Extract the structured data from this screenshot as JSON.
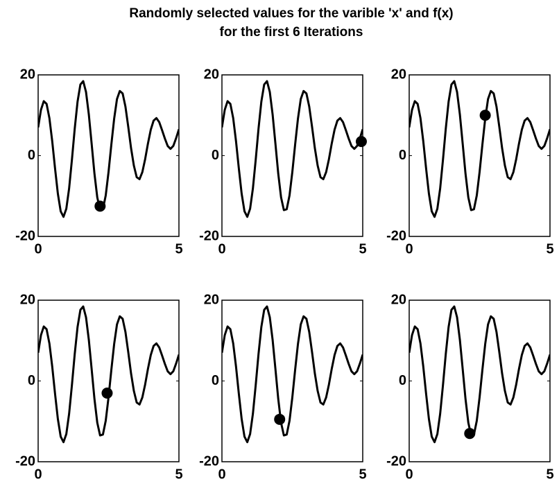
{
  "figure": {
    "title_lines": [
      "Randomly selected values for the varible 'x' and f(x)",
      "for the first 6 Iterations"
    ]
  },
  "chart_data": [
    {
      "type": "line",
      "xlim": [
        0,
        5
      ],
      "ylim": [
        -20,
        20
      ],
      "xticks": [
        0,
        5
      ],
      "yticks": [
        -20,
        0,
        20
      ],
      "series": [
        {
          "type": "line",
          "color": "#000000",
          "x": [
            0,
            0.1,
            0.2,
            0.3,
            0.4,
            0.5,
            0.6,
            0.7,
            0.8,
            0.9,
            1,
            1.1,
            1.2,
            1.3,
            1.4,
            1.5,
            1.6,
            1.7,
            1.8,
            1.9,
            2,
            2.1,
            2.2,
            2.3,
            2.4,
            2.5,
            2.6,
            2.7,
            2.8,
            2.9,
            3,
            3.1,
            3.2,
            3.3,
            3.4,
            3.5,
            3.6,
            3.7,
            3.8,
            3.9,
            4,
            4.1,
            4.2,
            4.3,
            4.4,
            4.5,
            4.6,
            4.7,
            4.8,
            4.9,
            5
          ],
          "values": [
            7,
            11.34,
            13.49,
            12.81,
            9.29,
            3.57,
            -3.15,
            -9.4,
            -13.76,
            -15.15,
            -13.16,
            -8.11,
            -0.98,
            6.73,
            13.4,
            17.6,
            18.45,
            15.77,
            10.18,
            2.94,
            -4.46,
            -10.33,
            -13.48,
            -13.28,
            -9.86,
            -4.04,
            2.78,
            9.17,
            14.01,
            16,
            15.41,
            12.16,
            7.15,
            1.84,
            -2.48,
            -5.33,
            -5.83,
            -4.08,
            -0.86,
            3.02,
            6.43,
            8.67,
            9.29,
            8.31,
            6.33,
            4.25,
            2.4,
            1.69,
            2.41,
            4.33,
            6.53
          ]
        },
        {
          "type": "scatter",
          "color": "#000000",
          "x": [
            2.2
          ],
          "values": [
            -12.5
          ]
        }
      ]
    },
    {
      "type": "line",
      "xlim": [
        0,
        5
      ],
      "ylim": [
        -20,
        20
      ],
      "xticks": [
        0,
        5
      ],
      "yticks": [
        -20,
        0,
        20
      ],
      "series": [
        {
          "type": "line",
          "color": "#000000",
          "x": [
            0,
            0.1,
            0.2,
            0.3,
            0.4,
            0.5,
            0.6,
            0.7,
            0.8,
            0.9,
            1,
            1.1,
            1.2,
            1.3,
            1.4,
            1.5,
            1.6,
            1.7,
            1.8,
            1.9,
            2,
            2.1,
            2.2,
            2.3,
            2.4,
            2.5,
            2.6,
            2.7,
            2.8,
            2.9,
            3,
            3.1,
            3.2,
            3.3,
            3.4,
            3.5,
            3.6,
            3.7,
            3.8,
            3.9,
            4,
            4.1,
            4.2,
            4.3,
            4.4,
            4.5,
            4.6,
            4.7,
            4.8,
            4.9,
            5
          ],
          "values": [
            7,
            11.34,
            13.49,
            12.81,
            9.29,
            3.57,
            -3.15,
            -9.4,
            -13.76,
            -15.15,
            -13.16,
            -8.11,
            -0.98,
            6.73,
            13.4,
            17.6,
            18.45,
            15.77,
            10.18,
            2.94,
            -4.46,
            -10.33,
            -13.48,
            -13.28,
            -9.86,
            -4.04,
            2.78,
            9.17,
            14.01,
            16,
            15.41,
            12.16,
            7.15,
            1.84,
            -2.48,
            -5.33,
            -5.83,
            -4.08,
            -0.86,
            3.02,
            6.43,
            8.67,
            9.29,
            8.31,
            6.33,
            4.25,
            2.4,
            1.69,
            2.41,
            4.33,
            6.53
          ]
        },
        {
          "type": "scatter",
          "color": "#000000",
          "x": [
            4.95
          ],
          "values": [
            3.5
          ]
        }
      ]
    },
    {
      "type": "line",
      "xlim": [
        0,
        5
      ],
      "ylim": [
        -20,
        20
      ],
      "xticks": [
        0,
        5
      ],
      "yticks": [
        -20,
        0,
        20
      ],
      "series": [
        {
          "type": "line",
          "color": "#000000",
          "x": [
            0,
            0.1,
            0.2,
            0.3,
            0.4,
            0.5,
            0.6,
            0.7,
            0.8,
            0.9,
            1,
            1.1,
            1.2,
            1.3,
            1.4,
            1.5,
            1.6,
            1.7,
            1.8,
            1.9,
            2,
            2.1,
            2.2,
            2.3,
            2.4,
            2.5,
            2.6,
            2.7,
            2.8,
            2.9,
            3,
            3.1,
            3.2,
            3.3,
            3.4,
            3.5,
            3.6,
            3.7,
            3.8,
            3.9,
            4,
            4.1,
            4.2,
            4.3,
            4.4,
            4.5,
            4.6,
            4.7,
            4.8,
            4.9,
            5
          ],
          "values": [
            7,
            11.34,
            13.49,
            12.81,
            9.29,
            3.57,
            -3.15,
            -9.4,
            -13.76,
            -15.15,
            -13.16,
            -8.11,
            -0.98,
            6.73,
            13.4,
            17.6,
            18.45,
            15.77,
            10.18,
            2.94,
            -4.46,
            -10.33,
            -13.48,
            -13.28,
            -9.86,
            -4.04,
            2.78,
            9.17,
            14.01,
            16,
            15.41,
            12.16,
            7.15,
            1.84,
            -2.48,
            -5.33,
            -5.83,
            -4.08,
            -0.86,
            3.02,
            6.43,
            8.67,
            9.29,
            8.31,
            6.33,
            4.25,
            2.4,
            1.69,
            2.41,
            4.33,
            6.53
          ]
        },
        {
          "type": "scatter",
          "color": "#000000",
          "x": [
            2.7
          ],
          "values": [
            10
          ]
        }
      ]
    },
    {
      "type": "line",
      "xlim": [
        0,
        5
      ],
      "ylim": [
        -20,
        20
      ],
      "xticks": [
        0,
        5
      ],
      "yticks": [
        -20,
        0,
        20
      ],
      "series": [
        {
          "type": "line",
          "color": "#000000",
          "x": [
            0,
            0.1,
            0.2,
            0.3,
            0.4,
            0.5,
            0.6,
            0.7,
            0.8,
            0.9,
            1,
            1.1,
            1.2,
            1.3,
            1.4,
            1.5,
            1.6,
            1.7,
            1.8,
            1.9,
            2,
            2.1,
            2.2,
            2.3,
            2.4,
            2.5,
            2.6,
            2.7,
            2.8,
            2.9,
            3,
            3.1,
            3.2,
            3.3,
            3.4,
            3.5,
            3.6,
            3.7,
            3.8,
            3.9,
            4,
            4.1,
            4.2,
            4.3,
            4.4,
            4.5,
            4.6,
            4.7,
            4.8,
            4.9,
            5
          ],
          "values": [
            7,
            11.34,
            13.49,
            12.81,
            9.29,
            3.57,
            -3.15,
            -9.4,
            -13.76,
            -15.15,
            -13.16,
            -8.11,
            -0.98,
            6.73,
            13.4,
            17.6,
            18.45,
            15.77,
            10.18,
            2.94,
            -4.46,
            -10.33,
            -13.48,
            -13.28,
            -9.86,
            -4.04,
            2.78,
            9.17,
            14.01,
            16,
            15.41,
            12.16,
            7.15,
            1.84,
            -2.48,
            -5.33,
            -5.83,
            -4.08,
            -0.86,
            3.02,
            6.43,
            8.67,
            9.29,
            8.31,
            6.33,
            4.25,
            2.4,
            1.69,
            2.41,
            4.33,
            6.53
          ]
        },
        {
          "type": "scatter",
          "color": "#000000",
          "x": [
            2.45
          ],
          "values": [
            -3
          ]
        }
      ]
    },
    {
      "type": "line",
      "xlim": [
        0,
        5
      ],
      "ylim": [
        -20,
        20
      ],
      "xticks": [
        0,
        5
      ],
      "yticks": [
        -20,
        0,
        20
      ],
      "series": [
        {
          "type": "line",
          "color": "#000000",
          "x": [
            0,
            0.1,
            0.2,
            0.3,
            0.4,
            0.5,
            0.6,
            0.7,
            0.8,
            0.9,
            1,
            1.1,
            1.2,
            1.3,
            1.4,
            1.5,
            1.6,
            1.7,
            1.8,
            1.9,
            2,
            2.1,
            2.2,
            2.3,
            2.4,
            2.5,
            2.6,
            2.7,
            2.8,
            2.9,
            3,
            3.1,
            3.2,
            3.3,
            3.4,
            3.5,
            3.6,
            3.7,
            3.8,
            3.9,
            4,
            4.1,
            4.2,
            4.3,
            4.4,
            4.5,
            4.6,
            4.7,
            4.8,
            4.9,
            5
          ],
          "values": [
            7,
            11.34,
            13.49,
            12.81,
            9.29,
            3.57,
            -3.15,
            -9.4,
            -13.76,
            -15.15,
            -13.16,
            -8.11,
            -0.98,
            6.73,
            13.4,
            17.6,
            18.45,
            15.77,
            10.18,
            2.94,
            -4.46,
            -10.33,
            -13.48,
            -13.28,
            -9.86,
            -4.04,
            2.78,
            9.17,
            14.01,
            16,
            15.41,
            12.16,
            7.15,
            1.84,
            -2.48,
            -5.33,
            -5.83,
            -4.08,
            -0.86,
            3.02,
            6.43,
            8.67,
            9.29,
            8.31,
            6.33,
            4.25,
            2.4,
            1.69,
            2.41,
            4.33,
            6.53
          ]
        },
        {
          "type": "scatter",
          "color": "#000000",
          "x": [
            2.05
          ],
          "values": [
            -9.5
          ]
        }
      ]
    },
    {
      "type": "line",
      "xlim": [
        0,
        5
      ],
      "ylim": [
        -20,
        20
      ],
      "xticks": [
        0,
        5
      ],
      "yticks": [
        -20,
        0,
        20
      ],
      "series": [
        {
          "type": "line",
          "color": "#000000",
          "x": [
            0,
            0.1,
            0.2,
            0.3,
            0.4,
            0.5,
            0.6,
            0.7,
            0.8,
            0.9,
            1,
            1.1,
            1.2,
            1.3,
            1.4,
            1.5,
            1.6,
            1.7,
            1.8,
            1.9,
            2,
            2.1,
            2.2,
            2.3,
            2.4,
            2.5,
            2.6,
            2.7,
            2.8,
            2.9,
            3,
            3.1,
            3.2,
            3.3,
            3.4,
            3.5,
            3.6,
            3.7,
            3.8,
            3.9,
            4,
            4.1,
            4.2,
            4.3,
            4.4,
            4.5,
            4.6,
            4.7,
            4.8,
            4.9,
            5
          ],
          "values": [
            7,
            11.34,
            13.49,
            12.81,
            9.29,
            3.57,
            -3.15,
            -9.4,
            -13.76,
            -15.15,
            -13.16,
            -8.11,
            -0.98,
            6.73,
            13.4,
            17.6,
            18.45,
            15.77,
            10.18,
            2.94,
            -4.46,
            -10.33,
            -13.48,
            -13.28,
            -9.86,
            -4.04,
            2.78,
            9.17,
            14.01,
            16,
            15.41,
            12.16,
            7.15,
            1.84,
            -2.48,
            -5.33,
            -5.83,
            -4.08,
            -0.86,
            3.02,
            6.43,
            8.67,
            9.29,
            8.31,
            6.33,
            4.25,
            2.4,
            1.69,
            2.41,
            4.33,
            6.53
          ]
        },
        {
          "type": "scatter",
          "color": "#000000",
          "x": [
            2.15
          ],
          "values": [
            -13
          ]
        }
      ]
    }
  ]
}
